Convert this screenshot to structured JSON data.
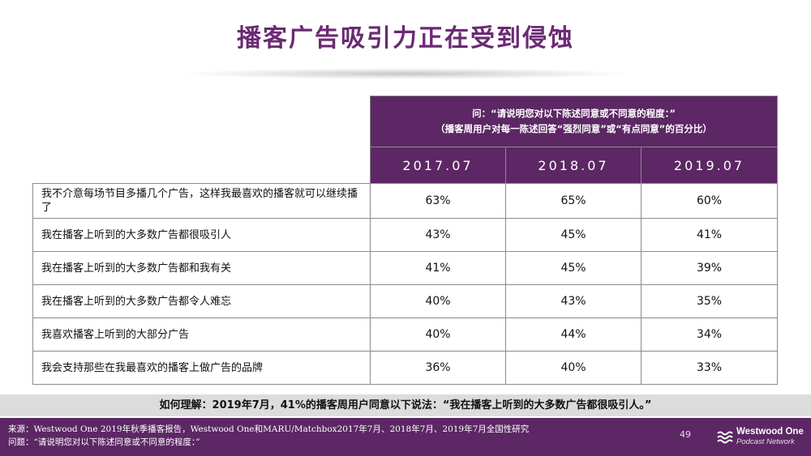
{
  "title": "播客广告吸引力正在受到侵蚀",
  "question_line1": "问：“请说明您对以下陈述同意或不同意的程度：”",
  "question_line2": "（播客周用户对每一陈述回答“强烈同意”或“有点同意”的百分比）",
  "years": [
    "2017.07",
    "2018.07",
    "2019.07"
  ],
  "rows": [
    {
      "statement": "我不介意每场节目多播几个广告，这样我最喜欢的播客就可以继续播了",
      "values": [
        "63%",
        "65%",
        "60%"
      ]
    },
    {
      "statement": "我在播客上听到的大多数广告都很吸引人",
      "values": [
        "43%",
        "45%",
        "41%"
      ]
    },
    {
      "statement": "我在播客上听到的大多数广告都和我有关",
      "values": [
        "41%",
        "45%",
        "39%"
      ]
    },
    {
      "statement": "我在播客上听到的大多数广告都令人难忘",
      "values": [
        "40%",
        "43%",
        "35%"
      ]
    },
    {
      "statement": "我喜欢播客上听到的大部分广告",
      "values": [
        "40%",
        "44%",
        "34%"
      ]
    },
    {
      "statement": "我会支持那些在我最喜欢的播客上做广告的品牌",
      "values": [
        "36%",
        "40%",
        "33%"
      ]
    }
  ],
  "insight": "如何理解：2019年7月，41%的播客周用户同意以下说法：“我在播客上听到的大多数广告都很吸引人。”",
  "source_line1": "来源：Westwood One 2019年秋季播客报告，Westwood One和MARU/Matchbox2017年7月、2018年7月、2019年7月全国性研究",
  "source_line2": "问题：“请说明您对以下陈述同意或不同意的程度：”",
  "page_number": "49",
  "logo_line1": "Westwood One",
  "logo_line2": "Podcast Network",
  "colors": {
    "purple": "#5c2764",
    "title": "#6b2a73",
    "insight_bg": "#dcdcdc"
  }
}
